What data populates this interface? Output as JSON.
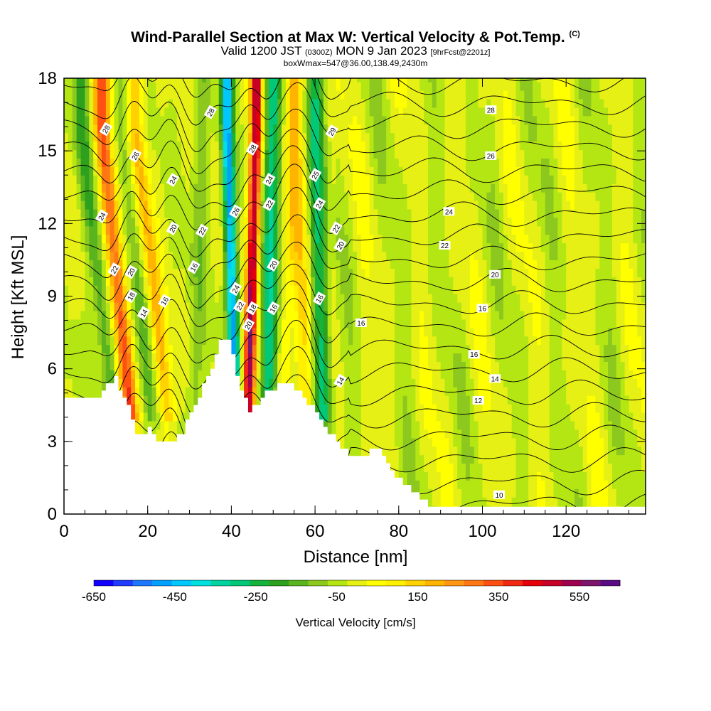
{
  "title": {
    "main": "Wind-Parallel Section at Max W: Vertical Velocity & Pot.Temp.",
    "tag": "(C)",
    "valid_prefix": "Valid 1200 JST",
    "valid_utc": "(0300Z)",
    "valid_date": "MON 9 Jan 2023",
    "forecast": "[9hrFcst@2201z]",
    "boxwmax": "boxWmax=547@36.00,138.49,2430m"
  },
  "chart_data": {
    "type": "heatmap",
    "xlabel": "Distance [nm]",
    "ylabel": "Height [Kft MSL]",
    "xlim": [
      0,
      139
    ],
    "ylim": [
      0,
      18
    ],
    "x_ticks": [
      0,
      20,
      40,
      60,
      80,
      100,
      120
    ],
    "y_ticks": [
      0,
      3,
      6,
      9,
      12,
      15,
      18
    ],
    "grid": false,
    "colorbar": {
      "label": "Vertical Velocity [cm/s]",
      "min": -650,
      "max": 650,
      "step": 50,
      "tick_labels": [
        "-650",
        "-450",
        "-250",
        "-50",
        "150",
        "350",
        "550"
      ],
      "tick_values": [
        -650,
        -450,
        -250,
        -50,
        150,
        350,
        550
      ],
      "colors": [
        "#1400ff",
        "#1f3cff",
        "#1e78ff",
        "#00a0ff",
        "#00c8ff",
        "#00e0e0",
        "#00d2a0",
        "#00c878",
        "#14b43c",
        "#2da01e",
        "#5ab41e",
        "#8cc81e",
        "#b4e614",
        "#e6f014",
        "#ffff00",
        "#fff000",
        "#ffd200",
        "#ffb400",
        "#ff9614",
        "#ff7814",
        "#ff5014",
        "#f02814",
        "#e6000a",
        "#c80028",
        "#a00050",
        "#7d146e",
        "#5a0a82"
      ]
    },
    "terrain_profile": {
      "x": [
        0,
        8,
        12,
        15,
        17,
        20,
        23,
        25,
        28,
        31,
        34,
        37,
        39,
        41,
        42,
        44,
        46,
        48,
        50,
        53,
        56,
        58,
        60,
        62,
        65,
        68,
        70,
        75,
        79,
        82,
        85,
        87,
        89,
        139
      ],
      "height": [
        4.8,
        4.9,
        5.6,
        4.4,
        3.2,
        3.5,
        2.9,
        3.0,
        3.4,
        4.6,
        5.6,
        7.2,
        7.3,
        5.8,
        5.2,
        4.2,
        4.5,
        5.0,
        5.2,
        5.5,
        5.1,
        4.6,
        4.2,
        3.6,
        3.0,
        2.4,
        2.5,
        2.6,
        1.6,
        1.2,
        0.6,
        0.3,
        0.3,
        0.3
      ]
    },
    "updraft_bands": [
      {
        "x_bottom": 16,
        "x_top": 9,
        "w": 350
      },
      {
        "x_bottom": 25,
        "x_top": 17,
        "w": 200
      },
      {
        "x_bottom": 44,
        "x_top": 46,
        "w": 547
      },
      {
        "x_bottom": 58,
        "x_top": 55,
        "w": 150
      },
      {
        "x_bottom": 52,
        "x_top": 55,
        "w": 100
      }
    ],
    "downdraft_bands": [
      {
        "x_bottom": 12,
        "x_top": 4,
        "w": -150
      },
      {
        "x_bottom": 21,
        "x_top": 14,
        "w": -100
      },
      {
        "x_bottom": 41,
        "x_top": 39,
        "w": -450
      },
      {
        "x_bottom": 49,
        "x_top": 50,
        "w": -300
      },
      {
        "x_bottom": 62,
        "x_top": 60,
        "w": -250
      },
      {
        "x_bottom": 31,
        "x_top": 33,
        "w": -80
      }
    ],
    "theta_contours": {
      "levels": [
        10,
        12,
        14,
        16,
        18,
        20,
        22,
        24,
        26,
        28
      ],
      "labels": [
        {
          "text": "10",
          "x": 104,
          "y": 0.8
        },
        {
          "text": "12",
          "x": 99,
          "y": 4.7
        },
        {
          "text": "14",
          "x": 103,
          "y": 5.6
        },
        {
          "text": "14",
          "x": 66,
          "y": 5.5
        },
        {
          "text": "14",
          "x": 19,
          "y": 8.3
        },
        {
          "text": "16",
          "x": 98,
          "y": 6.6
        },
        {
          "text": "16",
          "x": 100,
          "y": 8.5
        },
        {
          "text": "16",
          "x": 71,
          "y": 7.9
        },
        {
          "text": "16",
          "x": 50,
          "y": 8.5
        },
        {
          "text": "16",
          "x": 61,
          "y": 8.9
        },
        {
          "text": "16",
          "x": 24,
          "y": 8.8
        },
        {
          "text": "16",
          "x": 31,
          "y": 10.2
        },
        {
          "text": "18",
          "x": 16,
          "y": 9.0
        },
        {
          "text": "18",
          "x": 45,
          "y": 8.5
        },
        {
          "text": "20",
          "x": 44,
          "y": 7.8
        },
        {
          "text": "20",
          "x": 103,
          "y": 9.9
        },
        {
          "text": "20",
          "x": 16,
          "y": 10.0
        },
        {
          "text": "20",
          "x": 50,
          "y": 10.3
        },
        {
          "text": "20",
          "x": 66,
          "y": 11.1
        },
        {
          "text": "20",
          "x": 26,
          "y": 11.8
        },
        {
          "text": "22",
          "x": 42,
          "y": 8.6
        },
        {
          "text": "22",
          "x": 91,
          "y": 11.1
        },
        {
          "text": "22",
          "x": 12,
          "y": 10.1
        },
        {
          "text": "22",
          "x": 65,
          "y": 11.8
        },
        {
          "text": "22",
          "x": 33,
          "y": 11.7
        },
        {
          "text": "22",
          "x": 49,
          "y": 12.8
        },
        {
          "text": "24",
          "x": 41,
          "y": 9.3
        },
        {
          "text": "24",
          "x": 92,
          "y": 12.5
        },
        {
          "text": "24",
          "x": 9,
          "y": 12.3
        },
        {
          "text": "24",
          "x": 26,
          "y": 13.8
        },
        {
          "text": "24",
          "x": 49,
          "y": 13.8
        },
        {
          "text": "24",
          "x": 61,
          "y": 12.8
        },
        {
          "text": "25",
          "x": 60,
          "y": 14.0
        },
        {
          "text": "26",
          "x": 41,
          "y": 12.5
        },
        {
          "text": "26",
          "x": 102,
          "y": 14.8
        },
        {
          "text": "26",
          "x": 17,
          "y": 14.8
        },
        {
          "text": "28",
          "x": 102,
          "y": 16.7
        },
        {
          "text": "28",
          "x": 35,
          "y": 16.6
        },
        {
          "text": "28",
          "x": 45,
          "y": 15.1
        },
        {
          "text": "28",
          "x": 10,
          "y": 15.9
        },
        {
          "text": "29",
          "x": 64,
          "y": 15.8
        }
      ]
    }
  }
}
